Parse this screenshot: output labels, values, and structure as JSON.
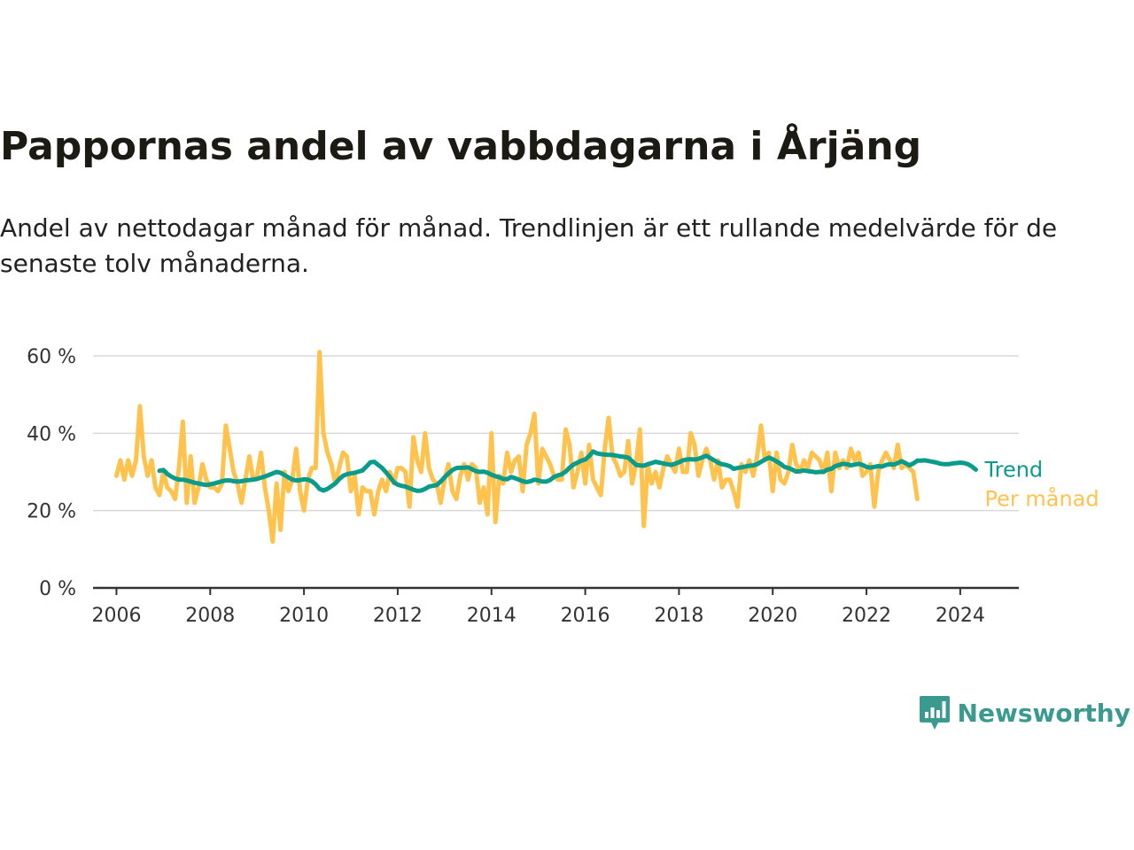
{
  "title": "Pappornas andel av vabbdagarna i Årjäng",
  "subtitle": "Andel av nettodagar månad för månad. Trendlinjen är ett rullande medelvärde för de senaste tolv månaderna.",
  "brand": {
    "name": "Newsworthy",
    "icon": "newsworthy-logo-icon",
    "color": "#3a9a8f"
  },
  "chart_data": {
    "type": "line",
    "title": "Pappornas andel av vabbdagarna i Årjäng",
    "xlabel": "",
    "ylabel": "",
    "xlim": [
      2005.5,
      2025.25
    ],
    "ylim": [
      0,
      60
    ],
    "x_ticks": [
      2006,
      2008,
      2010,
      2012,
      2014,
      2016,
      2018,
      2020,
      2022,
      2024
    ],
    "x_tick_labels": [
      "2006",
      "2008",
      "2010",
      "2012",
      "2014",
      "2016",
      "2018",
      "2020",
      "2022",
      "2024"
    ],
    "y_ticks": [
      0,
      20,
      40,
      60
    ],
    "y_tick_labels": [
      "0 %",
      "20 %",
      "40 %",
      "60 %"
    ],
    "grid": "horizontal",
    "legend": "direct labels at line ends (right)",
    "monthly_start": "2006-01",
    "trend_start": "2006-12",
    "series": [
      {
        "name": "Per månad",
        "color": "#ffc34d",
        "values": [
          29,
          33,
          28,
          33,
          29,
          33,
          47,
          34,
          29,
          33,
          26,
          24,
          30,
          26,
          25,
          23,
          31,
          43,
          22,
          34,
          22,
          26,
          32,
          28,
          26,
          26,
          25,
          27,
          42,
          36,
          30,
          27,
          22,
          28,
          34,
          28,
          29,
          35,
          26,
          20,
          12,
          27,
          15,
          30,
          25,
          28,
          36,
          25,
          20,
          28,
          31,
          31,
          61,
          40,
          35,
          32,
          27,
          31,
          35,
          34,
          25,
          29,
          19,
          26,
          25,
          25,
          19,
          25,
          28,
          25,
          30,
          27,
          31,
          31,
          30,
          21,
          39,
          33,
          30,
          40,
          31,
          28,
          27,
          22,
          28,
          32,
          25,
          23,
          29,
          32,
          28,
          32,
          31,
          22,
          26,
          19,
          40,
          17,
          29,
          27,
          35,
          30,
          33,
          34,
          25,
          37,
          40,
          45,
          27,
          36,
          34,
          32,
          29,
          28,
          28,
          41,
          37,
          26,
          30,
          35,
          27,
          37,
          28,
          26,
          24,
          36,
          44,
          34,
          32,
          29,
          30,
          38,
          27,
          32,
          41,
          16,
          32,
          27,
          30,
          26,
          31,
          34,
          32,
          30,
          36,
          30,
          30,
          40,
          37,
          29,
          33,
          36,
          33,
          28,
          33,
          26,
          28,
          28,
          25,
          21,
          32,
          30,
          33,
          29,
          34,
          42,
          33,
          35,
          25,
          35,
          28,
          27,
          30,
          37,
          32,
          30,
          33,
          31,
          35,
          34,
          33,
          30,
          35,
          25,
          35,
          31,
          33,
          31,
          36,
          33,
          35,
          29,
          30,
          32,
          21,
          30,
          33,
          35,
          33,
          31,
          37,
          31,
          32,
          31,
          30,
          23
        ]
      },
      {
        "name": "Trend",
        "color": "#0a9b8a",
        "values": [
          30.3,
          30.5,
          29.5,
          28.8,
          28.3,
          28.0,
          28.0,
          27.8,
          27.5,
          27.2,
          27.0,
          26.8,
          26.6,
          26.8,
          27.0,
          27.3,
          27.6,
          27.8,
          27.8,
          27.6,
          27.5,
          27.6,
          27.8,
          27.9,
          28.0,
          28.2,
          28.5,
          28.8,
          29.2,
          29.6,
          30.0,
          29.8,
          29.2,
          28.6,
          28.0,
          27.8,
          27.9,
          28.1,
          28.0,
          27.6,
          26.8,
          25.6,
          25.2,
          25.6,
          26.3,
          27.0,
          28.1,
          29.0,
          29.4,
          29.6,
          29.8,
          30.1,
          30.4,
          31.4,
          32.5,
          32.6,
          31.8,
          31.0,
          29.9,
          28.7,
          27.4,
          26.7,
          26.4,
          26.2,
          25.8,
          25.4,
          25.1,
          25.2,
          25.6,
          26.2,
          26.4,
          26.6,
          27.5,
          28.6,
          29.6,
          30.5,
          31.0,
          31.1,
          31.1,
          31.2,
          30.7,
          30.2,
          30.0,
          30.1,
          29.8,
          29.3,
          28.9,
          28.6,
          28.2,
          28.1,
          28.7,
          28.4,
          28.0,
          27.6,
          27.4,
          27.6,
          28.0,
          27.8,
          27.5,
          27.5,
          27.9,
          28.7,
          29.1,
          29.4,
          30.1,
          31.1,
          31.9,
          32.4,
          32.9,
          33.2,
          34.1,
          35.3,
          34.8,
          34.6,
          34.5,
          34.4,
          34.4,
          34.2,
          34.0,
          33.9,
          33.7,
          32.8,
          31.8,
          31.7,
          31.6,
          32.0,
          32.3,
          32.6,
          32.4,
          32.2,
          32.0,
          31.8,
          32.1,
          32.5,
          33.0,
          33.2,
          33.3,
          33.2,
          33.4,
          33.8,
          34.2,
          33.6,
          33.0,
          32.4,
          32.0,
          31.8,
          31.5,
          30.8,
          31.0,
          31.2,
          31.4,
          31.6,
          31.7,
          32.0,
          32.6,
          33.2,
          33.7,
          33.3,
          32.7,
          32.1,
          31.3,
          31.0,
          30.6,
          30.1,
          30.2,
          30.4,
          30.2,
          30.1,
          29.9,
          30.0,
          30.0,
          30.6,
          30.8,
          31.5,
          31.8,
          32.1,
          32.0,
          31.7,
          31.9,
          32.1,
          31.8,
          31.3,
          31.1,
          31.3,
          31.5,
          31.4,
          31.8,
          32.0,
          31.9,
          32.3,
          32.8,
          32.3,
          31.7,
          32.2,
          32.9,
          32.9,
          33.0,
          32.8,
          32.6,
          32.4,
          32.1,
          32.0,
          32.0,
          32.2,
          32.3,
          32.4,
          32.3,
          32.0,
          31.4,
          30.6
        ]
      }
    ]
  }
}
